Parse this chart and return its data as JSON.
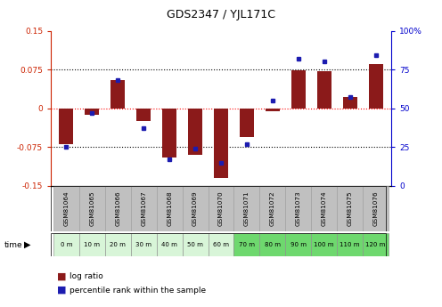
{
  "title": "GDS2347 / YJL171C",
  "samples": [
    "GSM81064",
    "GSM81065",
    "GSM81066",
    "GSM81067",
    "GSM81068",
    "GSM81069",
    "GSM81070",
    "GSM81071",
    "GSM81072",
    "GSM81073",
    "GSM81074",
    "GSM81075",
    "GSM81076"
  ],
  "time_labels": [
    "0 m",
    "10 m",
    "20 m",
    "30 m",
    "40 m",
    "50 m",
    "60 m",
    "70 m",
    "80 m",
    "90 m",
    "100 m",
    "110 m",
    "120 m"
  ],
  "log_ratio": [
    -0.07,
    -0.012,
    0.055,
    -0.025,
    -0.095,
    -0.09,
    -0.135,
    -0.055,
    -0.005,
    0.073,
    0.072,
    0.022,
    0.085
  ],
  "percentile": [
    25,
    47,
    68,
    37,
    17,
    24,
    15,
    27,
    55,
    82,
    80,
    57,
    84
  ],
  "ylim_left": [
    -0.15,
    0.15
  ],
  "ylim_right": [
    0,
    100
  ],
  "yticks_left": [
    -0.15,
    -0.075,
    0,
    0.075,
    0.15
  ],
  "yticks_right": [
    0,
    25,
    50,
    75,
    100
  ],
  "ytick_labels_left": [
    "-0.15",
    "-0.075",
    "0",
    "0.075",
    "0.15"
  ],
  "ytick_labels_right": [
    "0",
    "25",
    "50",
    "75",
    "100%"
  ],
  "hlines": [
    -0.075,
    0,
    0.075
  ],
  "hline_colors": [
    "black",
    "red",
    "black"
  ],
  "hline_styles": [
    "dotted",
    "dotted",
    "dotted"
  ],
  "bar_color": "#8B1A1A",
  "dot_color": "#1C1CB0",
  "left_axis_color": "#CC2200",
  "right_axis_color": "#0000CC",
  "time_bg_colors": [
    "#d8f5d8",
    "#d8f5d8",
    "#d8f5d8",
    "#d8f5d8",
    "#d8f5d8",
    "#d8f5d8",
    "#d8f5d8",
    "#6ED86E",
    "#6ED86E",
    "#6ED86E",
    "#6ED86E",
    "#6ED86E",
    "#6ED86E"
  ],
  "sample_bg_color": "#C0C0C0",
  "legend_log_ratio": "log ratio",
  "legend_percentile": "percentile rank within the sample",
  "bar_width": 0.55
}
